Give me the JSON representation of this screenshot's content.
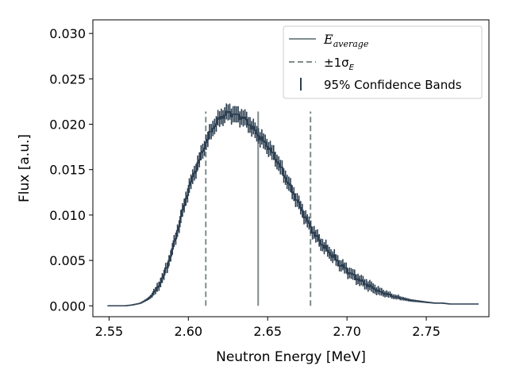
{
  "chart_data": {
    "type": "line",
    "title": "",
    "xlabel": "Neutron Energy [MeV]",
    "ylabel": "Flux [a.u.]",
    "xlim": [
      2.5398,
      2.7895
    ],
    "ylim": [
      -0.0012,
      0.0315
    ],
    "xticks": [
      "2.55",
      "2.60",
      "2.65",
      "2.70",
      "2.75"
    ],
    "xtick_values": [
      2.55,
      2.6,
      2.65,
      2.7,
      2.75
    ],
    "yticks": [
      "0.000",
      "0.005",
      "0.010",
      "0.015",
      "0.020",
      "0.025",
      "0.030"
    ],
    "ytick_values": [
      0.0,
      0.005,
      0.01,
      0.015,
      0.02,
      0.025,
      0.03
    ],
    "grid": false,
    "legend_position": "top-right",
    "legend": {
      "e_average_base": "E",
      "e_average_sub": "average",
      "sigma_prefix": "±1σ",
      "sigma_sub": "E",
      "confidence": "95% Confidence Bands"
    },
    "colors": {
      "data": "#2c3e50",
      "reference": "#7f8c8d"
    },
    "spectrum_profile": {
      "x": [
        2.549,
        2.555,
        2.56,
        2.565,
        2.57,
        2.575,
        2.58,
        2.585,
        2.59,
        2.595,
        2.6,
        2.605,
        2.61,
        2.615,
        2.62,
        2.625,
        2.63,
        2.635,
        2.64,
        2.645,
        2.65,
        2.655,
        2.66,
        2.665,
        2.67,
        2.675,
        2.68,
        2.685,
        2.69,
        2.695,
        2.7,
        2.705,
        2.71,
        2.715,
        2.72,
        2.725,
        2.73,
        2.735,
        2.74,
        2.745,
        2.75,
        2.755,
        2.76,
        2.765,
        2.77,
        2.775,
        2.783
      ],
      "y": [
        0.0,
        0.0,
        0.0,
        0.0001,
        0.0003,
        0.0008,
        0.0018,
        0.0035,
        0.0062,
        0.0095,
        0.0128,
        0.0152,
        0.0175,
        0.0195,
        0.0207,
        0.0213,
        0.021,
        0.0207,
        0.0197,
        0.0186,
        0.0176,
        0.0163,
        0.0146,
        0.0128,
        0.0111,
        0.0093,
        0.0078,
        0.0066,
        0.0057,
        0.0047,
        0.0039,
        0.0032,
        0.0026,
        0.0021,
        0.0016,
        0.0013,
        0.001,
        0.0008,
        0.0006,
        0.0005,
        0.0004,
        0.0003,
        0.0003,
        0.0002,
        0.0002,
        0.0002,
        0.0002
      ]
    },
    "error_profile": {
      "x": [
        2.549,
        2.6,
        2.63,
        2.66,
        2.7,
        2.783
      ],
      "halfwidth": [
        0.0,
        0.0008,
        0.0009,
        0.0008,
        0.0006,
        0.0004
      ]
    },
    "num_bins": 220,
    "E_average": 2.644,
    "sigma_minus": 2.611,
    "sigma_plus": 2.677,
    "reference_line_top": 0.0214
  }
}
